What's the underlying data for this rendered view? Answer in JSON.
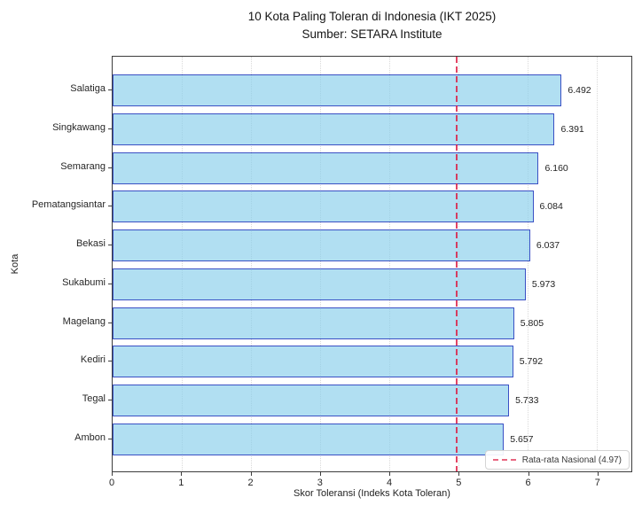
{
  "chart_data": {
    "type": "bar",
    "orientation": "horizontal",
    "title": "10 Kota Paling Toleran di Indonesia (IKT 2025)",
    "subtitle": "Sumber: SETARA Institute",
    "categories": [
      "Salatiga",
      "Singkawang",
      "Semarang",
      "Pematangsiantar",
      "Bekasi",
      "Sukabumi",
      "Magelang",
      "Kediri",
      "Tegal",
      "Ambon"
    ],
    "values": [
      6.492,
      6.391,
      6.16,
      6.084,
      6.037,
      5.973,
      5.805,
      5.792,
      5.733,
      5.657
    ],
    "value_label_decimals": 3,
    "xlabel": "Skor Toleransi (Indeks Kota Toleran)",
    "ylabel": "Kota",
    "xlim": [
      0,
      7.5
    ],
    "xticks": [
      0,
      1,
      2,
      3,
      4,
      5,
      6,
      7
    ],
    "grid": "vertical dotted",
    "legend_position": "lower right",
    "reference_line": {
      "value": 4.97,
      "label": "Rata-rata Nasional (4.97)",
      "style": "dashed"
    },
    "colors": {
      "bar_fill": "rgba(135,206,235,0.65)",
      "bar_edge": "#3a50c4",
      "reference_line": "rgba(220,20,60,0.8)",
      "grid": "#d9d9d9",
      "text": "#1f1f1f"
    }
  }
}
